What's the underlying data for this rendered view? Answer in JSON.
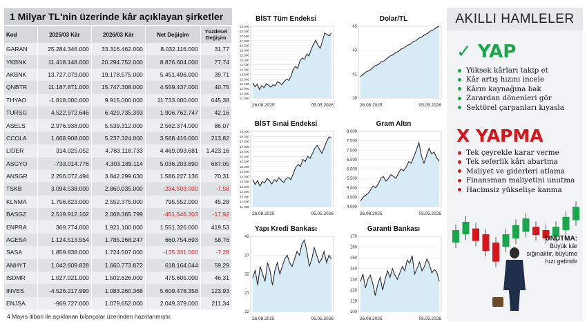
{
  "table": {
    "title": "1 Milyar TL'nin üzerinde kâr açıklayan şirketler",
    "headers": [
      "Kod",
      "2025/03 Kâr",
      "2026/03 Kâr",
      "Net Değişim",
      "Yüzdesel Değişim"
    ],
    "rows": [
      [
        "GARAN",
        "25.284.346.000",
        "33.316.462.000",
        "8.032.116.000",
        "31,77"
      ],
      [
        "YKBNK",
        "11.418.148.000",
        "20.294.752.000",
        "8.876.604.000",
        "77,74"
      ],
      [
        "AKBNK",
        "13.727.079.000",
        "19.178.575.000",
        "5.451.496.000",
        "39,71"
      ],
      [
        "QNBTR",
        "11.187.871.000",
        "15.747.308.000",
        "4.559.437.000",
        "40,75"
      ],
      [
        "THYAO",
        "-1.818.000.000",
        "9.915.000.000",
        "11.733.000.000",
        "645,38"
      ],
      [
        "TURSG",
        "4.522.972.646",
        "6.429.735.393",
        "1.906.762.747",
        "42,16"
      ],
      [
        "ASELS",
        "2.976.938.000",
        "5.539.312.000",
        "2.562.374.000",
        "86,07"
      ],
      [
        "CCOLA",
        "1.668.908.000",
        "5.237.324.000",
        "3.568.416.000",
        "213,82"
      ],
      [
        "LIDER",
        "314.025.052",
        "4.783.118.733",
        "4.469.093.681",
        "1.423,16"
      ],
      [
        "ASGYO",
        "-733.014.776",
        "4.303.189.114",
        "5.036.203.890",
        "687,05"
      ],
      [
        "ANSGR",
        "2.256.072.494",
        "3.842.299.630",
        "1.586.227.136",
        "70,31"
      ],
      [
        "TSKB",
        "3.094.538.000",
        "2.860.035.000",
        "-234.503.000",
        "-7,58"
      ],
      [
        "KLNMA",
        "1.756.823.000",
        "2.552.375.000",
        "795.552.000",
        "45,28"
      ],
      [
        "BASGZ",
        "2.519.912.102",
        "2.068.365.799",
        "-451.546.303",
        "-17,92"
      ],
      [
        "ENPRA",
        "369.774.000",
        "1.921.100.000",
        "1.551.326.000",
        "419,53"
      ],
      [
        "AGESA",
        "1.124.513.554",
        "1.785.268.247",
        "660.754.693",
        "58,76"
      ],
      [
        "SASA",
        "1.859.838.000",
        "1.724.507.000",
        "-135.331.000",
        "-7,28"
      ],
      [
        "ANHYT",
        "1.042.609.828",
        "1.660.773.872",
        "618.164.044",
        "59,29"
      ],
      [
        "ISDMR",
        "1.027.021.000",
        "1.502.626.000",
        "475.605.000",
        "46,31"
      ],
      [
        "INVES",
        "-4.526.217.990",
        "1.083.260.368",
        "5.609.478.358",
        "123,93"
      ],
      [
        "ENJSA",
        "-969.727.000",
        "1.079.652.000",
        "2.049.379.000",
        "211,34"
      ]
    ],
    "footnote": "4 Mayıs itibari ile açıklanan bilançolar üzerinden hazırlanmıştır.",
    "negative_color": "#e0151b"
  },
  "chart_data": [
    {
      "type": "area",
      "title": "BİST Tüm Endeksi",
      "x_start": "26.08.2025",
      "x_end": "05.05.2026",
      "yticks": [
        "11.000",
        "11.500",
        "12.000",
        "12.500",
        "13.000",
        "13.500",
        "14.000",
        "14.500",
        "15.000",
        "15.500",
        "16.000",
        "16.500",
        "17.000",
        "17.500",
        "18.000",
        "18.500"
      ],
      "ylim": [
        11000,
        18500
      ],
      "values": [
        12600,
        12200,
        12450,
        11900,
        12300,
        12100,
        12500,
        12350,
        12150,
        12400,
        12300,
        12700,
        12600,
        12400,
        12750,
        12950,
        12850,
        13300,
        14000,
        14300,
        14100,
        14900,
        15200,
        15050,
        15600,
        15400,
        16100,
        16600,
        17050,
        16500,
        16200,
        16950,
        17800,
        17650,
        17500,
        17800
      ]
    },
    {
      "type": "area",
      "title": "Dolar/TL",
      "x_start": "26.08.2025",
      "x_end": "05.05.2026",
      "yticks": [
        "39",
        "41",
        "43",
        "45"
      ],
      "ylim": [
        39,
        45
      ],
      "values": [
        40.8,
        41.0,
        41.2,
        41.3,
        41.5,
        41.7,
        41.8,
        42.0,
        42.1,
        42.3,
        42.5,
        42.6,
        42.8,
        42.9,
        43.1,
        43.2,
        43.4,
        43.5,
        43.7,
        43.8,
        44.0,
        44.1,
        44.3,
        44.4,
        44.6,
        44.7,
        44.9,
        45.0
      ]
    },
    {
      "type": "area",
      "title": "BİST Sınai Endeksi",
      "x_start": "26.08.2025",
      "x_end": "05.05.2026",
      "yticks": [
        "11.000",
        "11.500",
        "12.000",
        "12.500",
        "13.000",
        "13.500",
        "14.000",
        "14.500",
        "15.000",
        "15.500",
        "16.000",
        "16.500",
        "17.000",
        "17.500",
        "18.000",
        "18.500"
      ],
      "ylim": [
        11000,
        18500
      ],
      "values": [
        13700,
        13200,
        13600,
        13050,
        13500,
        13350,
        13800,
        13600,
        13250,
        13700,
        13500,
        13900,
        13600,
        13400,
        13800,
        13900,
        13700,
        14300,
        14900,
        15200,
        15000,
        15700,
        15500,
        16000,
        15800,
        16300,
        16800,
        17100,
        16700,
        16300,
        16900,
        17500,
        17950,
        17800
      ]
    },
    {
      "type": "area",
      "title": "Gram Altın",
      "x_start": "26.08.2025",
      "x_end": "05.05.2026",
      "yticks": [
        "4.000",
        "4.500",
        "5.000",
        "5.500",
        "6.000",
        "6.500",
        "7.000",
        "7.500",
        "8.000"
      ],
      "ylim": [
        4000,
        8000
      ],
      "values": [
        4300,
        4500,
        4600,
        4700,
        4900,
        5100,
        5000,
        5200,
        5500,
        5600,
        5350,
        5500,
        5700,
        5600,
        5500,
        5800,
        6000,
        5900,
        6100,
        6400,
        6300,
        6650,
        7000,
        7400,
        6700,
        6300,
        6700,
        7100,
        6800,
        6900,
        6600,
        6400
      ]
    },
    {
      "type": "area",
      "title": "Yapı Kredi Bankası",
      "x_start": "26.08.2025",
      "x_end": "05.05.2026",
      "yticks": [
        "22",
        "27",
        "32",
        "37",
        "42"
      ],
      "ylim": [
        22,
        42
      ],
      "values": [
        31,
        33,
        29,
        34,
        32,
        30,
        35,
        33,
        29,
        33,
        35,
        32,
        34,
        36,
        37,
        35,
        34,
        36,
        38,
        37,
        40,
        41,
        38,
        34,
        36,
        39,
        37,
        35,
        36,
        38,
        35,
        37,
        36
      ]
    },
    {
      "type": "area",
      "title": "Garanti Bankası",
      "x_start": "26.08.2025",
      "x_end": "05.05.2026",
      "yticks": [
        "100",
        "110",
        "120",
        "130",
        "140",
        "150",
        "160",
        "170"
      ],
      "ylim": [
        100,
        170
      ],
      "values": [
        128,
        135,
        122,
        130,
        134,
        126,
        115,
        125,
        132,
        120,
        130,
        138,
        132,
        140,
        134,
        130,
        136,
        142,
        138,
        148,
        145,
        152,
        135,
        140,
        146,
        138,
        142,
        149,
        144,
        136,
        139,
        137,
        128
      ]
    }
  ],
  "side": {
    "title": "AKILLI HAMLELER",
    "yap_heading": "✓ YAP",
    "yap_items": [
      "Yüksek kârları takip et",
      "Kâr artış hızını incele",
      "Kârın kaynağına bak",
      "Zarardan dönenleri gör",
      "Sektörel çarpanları kıyasla"
    ],
    "yapma_heading": "X YAPMA",
    "yapma_items": [
      "Tek çeyrekle karar verme",
      "Tek seferlik kârı abartma",
      "Maliyet ve giderleri atlama",
      "Finansman maliyetini unutma",
      "Hacimsiz yükselişe kanma"
    ],
    "note_title": "UNUTMA:",
    "note_text": "Büyük kâr sığınaktır, büyüme hızı getiridir",
    "candles": [
      {
        "dir": "up",
        "open": 0.45,
        "close": 0.6
      },
      {
        "dir": "up",
        "open": 0.55,
        "close": 0.7
      },
      {
        "dir": "down",
        "open": 0.62,
        "close": 0.47
      },
      {
        "dir": "down",
        "open": 0.55,
        "close": 0.35
      },
      {
        "dir": "down",
        "open": 0.45,
        "close": 0.22
      },
      {
        "dir": "up",
        "open": 0.4,
        "close": 0.55
      },
      {
        "dir": "up",
        "open": 0.5,
        "close": 0.66
      },
      {
        "dir": "up",
        "open": 0.58,
        "close": 0.74
      },
      {
        "dir": "down",
        "open": 0.64,
        "close": 0.54
      },
      {
        "dir": "down",
        "open": 0.6,
        "close": 0.5
      },
      {
        "dir": "up",
        "open": 0.52,
        "close": 0.64
      },
      {
        "dir": "up",
        "open": 0.6,
        "close": 0.76
      },
      {
        "dir": "up",
        "open": 0.72,
        "close": 0.88
      }
    ],
    "colors": {
      "green": "#1aa64b",
      "red": "#d6161c"
    }
  }
}
